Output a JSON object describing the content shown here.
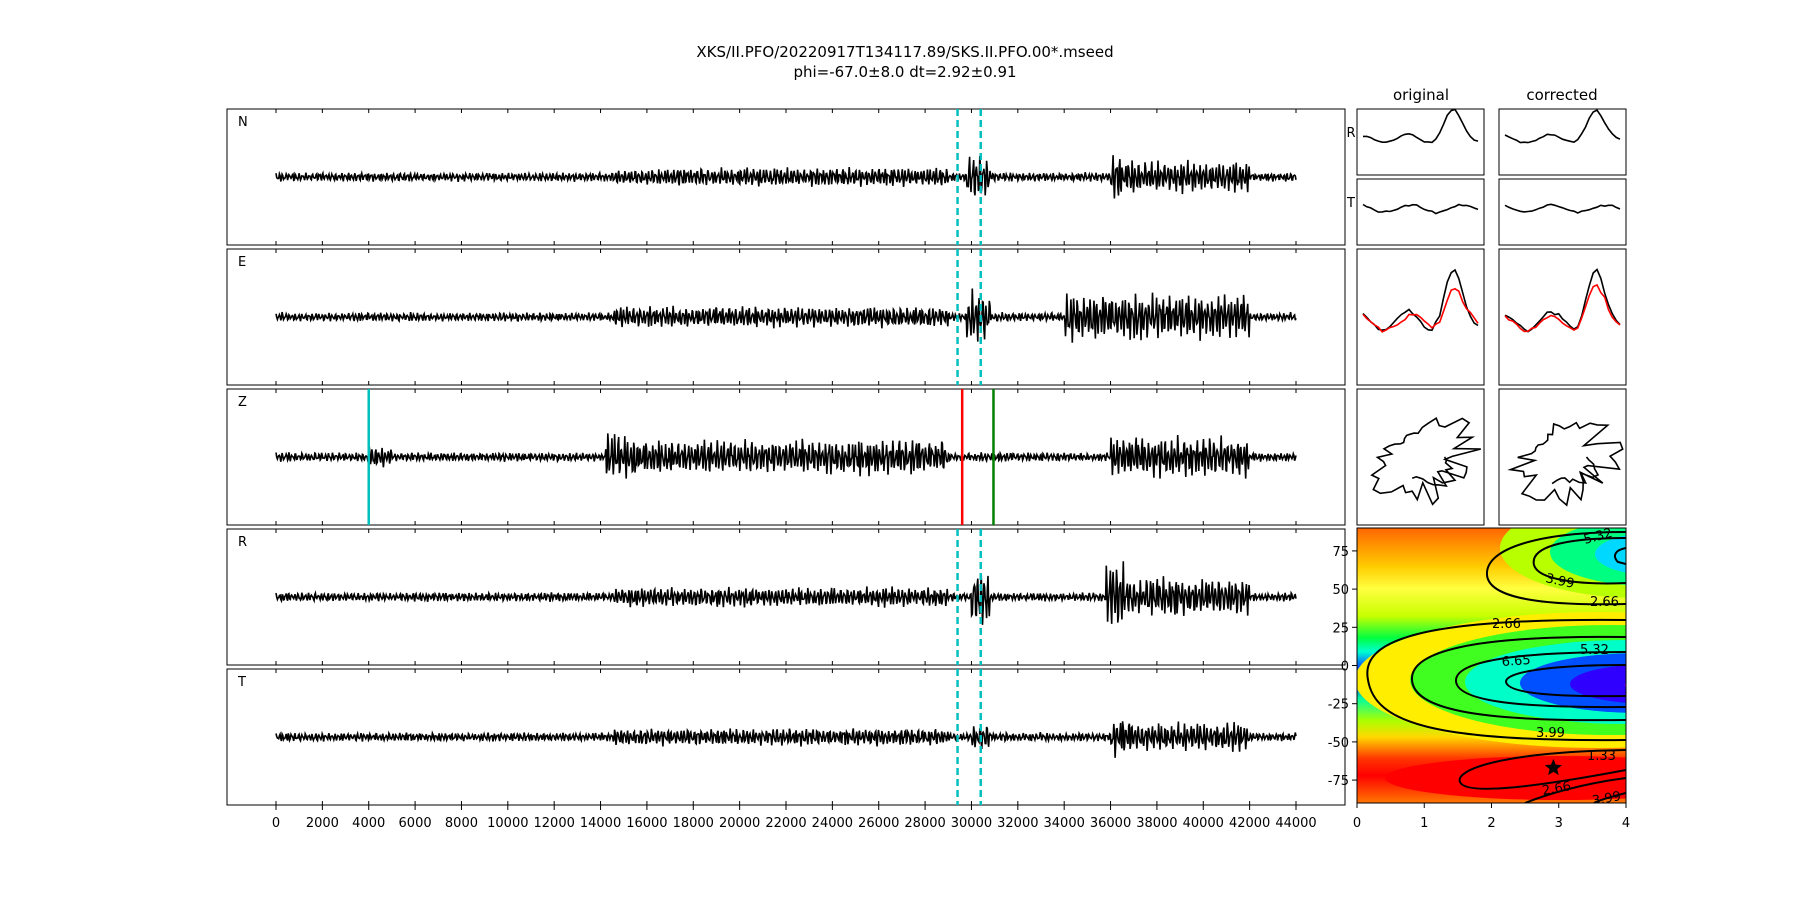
{
  "figure": {
    "title_line1": "XKS/II.PFO/20220917T134117.89/SKS.II.PFO.00*.mseed",
    "title_line2": "phi=-67.0±8.0 dt=2.92±0.91",
    "col_original": "original",
    "col_corrected": "corrected"
  },
  "chart_data": [
    {
      "type": "line",
      "panel": "seismograms",
      "traces": [
        "N",
        "E",
        "Z",
        "R",
        "T"
      ],
      "x_range": [
        0,
        44000
      ],
      "x_ticks": [
        0,
        2000,
        4000,
        6000,
        8000,
        10000,
        12000,
        14000,
        16000,
        18000,
        20000,
        22000,
        24000,
        26000,
        28000,
        30000,
        32000,
        34000,
        36000,
        38000,
        40000,
        42000,
        44000
      ],
      "window_markers": {
        "traces": [
          "N",
          "E",
          "R",
          "T"
        ],
        "x": [
          29400,
          30400
        ],
        "style": "dashed",
        "color": "#00bfbf"
      },
      "phase_lines": [
        {
          "trace": "Z",
          "x": 4000,
          "color": "#00bfbf"
        },
        {
          "trace": "Z",
          "x": 29600,
          "color": "#ff0000"
        },
        {
          "trace": "Z",
          "x": 30950,
          "color": "#008000"
        }
      ]
    },
    {
      "type": "line",
      "panel": "particle-motion-and-windows",
      "row_labels": [
        "R",
        "T"
      ],
      "columns": [
        "original",
        "corrected"
      ],
      "colors": {
        "trace": "#000000",
        "overlay": "#ff0000"
      }
    },
    {
      "type": "heatmap",
      "panel": "error-surface",
      "x_range": [
        0,
        4
      ],
      "y_range": [
        -90,
        90
      ],
      "x_ticks": [
        0,
        1,
        2,
        3,
        4
      ],
      "y_ticks": [
        75,
        50,
        25,
        0,
        -25,
        -50,
        -75
      ],
      "contour_labels": [
        "5.32",
        "3.99",
        "2.66",
        "2.66",
        "5.32",
        "6.65",
        "3.99",
        "1.33",
        "2.66",
        "3.99"
      ],
      "best_fit": {
        "dt": 2.92,
        "phi": -67.0,
        "marker": "star"
      },
      "colormap": "hsv"
    }
  ]
}
